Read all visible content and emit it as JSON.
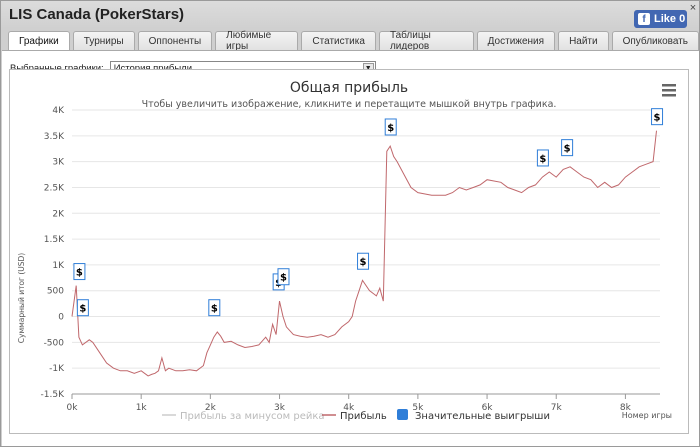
{
  "window": {
    "title": "LIS Canada (PokerStars)",
    "like_label": "Like 0",
    "close_glyph": "×"
  },
  "tabs": [
    {
      "label": "Графики",
      "active": true
    },
    {
      "label": "Турниры"
    },
    {
      "label": "Оппоненты"
    },
    {
      "label": "Любимые игры"
    },
    {
      "label": "Статистика"
    },
    {
      "label": "Таблицы лидеров"
    },
    {
      "label": "Достижения"
    },
    {
      "label": "Найти"
    },
    {
      "label": "Опубликовать"
    }
  ],
  "selector": {
    "label": "Выбранные графики:",
    "value": "История прибыли"
  },
  "colors": {
    "profit_line": "#c0686c",
    "rake_line": "#cccccc",
    "marker_border": "#2f7ed8",
    "tab_bg": "#e6e6e6"
  },
  "chart_data": {
    "type": "line",
    "title": "Общая прибыль",
    "subtitle": "Чтобы увеличить изображение, кликните и перетащите мышкой внутрь графика.",
    "ylabel": "Суммарный итог (USD)",
    "xlabel": "Номер игры",
    "ylim": [
      -1500,
      4000
    ],
    "xlim": [
      0,
      8500
    ],
    "x_ticks": [
      "0k",
      "1k",
      "2k",
      "3k",
      "4k",
      "5k",
      "6k",
      "7k",
      "8k"
    ],
    "y_ticks": [
      "4K",
      "3.5K",
      "3K",
      "2.5K",
      "2K",
      "1.5K",
      "1K",
      "500",
      "0",
      "-500",
      "-1K",
      "-1.5K"
    ],
    "legend": [
      "Прибыль за минусом рейка",
      "Прибыль",
      "Значительные выигрыши"
    ],
    "legend_position": "bottom",
    "series": [
      {
        "name": "Прибыль",
        "points": [
          [
            0,
            0
          ],
          [
            60,
            600
          ],
          [
            100,
            -400
          ],
          [
            150,
            -550
          ],
          [
            250,
            -450
          ],
          [
            300,
            -500
          ],
          [
            400,
            -700
          ],
          [
            500,
            -900
          ],
          [
            600,
            -1000
          ],
          [
            700,
            -1050
          ],
          [
            800,
            -1050
          ],
          [
            900,
            -1100
          ],
          [
            1000,
            -1050
          ],
          [
            1100,
            -1150
          ],
          [
            1150,
            -1120
          ],
          [
            1200,
            -1100
          ],
          [
            1250,
            -1050
          ],
          [
            1300,
            -800
          ],
          [
            1350,
            -1050
          ],
          [
            1400,
            -1000
          ],
          [
            1500,
            -1050
          ],
          [
            1600,
            -1050
          ],
          [
            1700,
            -1030
          ],
          [
            1800,
            -1050
          ],
          [
            1900,
            -950
          ],
          [
            1950,
            -700
          ],
          [
            2000,
            -550
          ],
          [
            2050,
            -400
          ],
          [
            2100,
            -300
          ],
          [
            2150,
            -380
          ],
          [
            2200,
            -500
          ],
          [
            2300,
            -480
          ],
          [
            2400,
            -550
          ],
          [
            2500,
            -600
          ],
          [
            2600,
            -580
          ],
          [
            2700,
            -550
          ],
          [
            2800,
            -400
          ],
          [
            2850,
            -500
          ],
          [
            2900,
            -150
          ],
          [
            2950,
            -350
          ],
          [
            3000,
            300
          ],
          [
            3050,
            0
          ],
          [
            3100,
            -200
          ],
          [
            3200,
            -350
          ],
          [
            3300,
            -380
          ],
          [
            3400,
            -400
          ],
          [
            3500,
            -380
          ],
          [
            3600,
            -350
          ],
          [
            3700,
            -400
          ],
          [
            3800,
            -350
          ],
          [
            3900,
            -200
          ],
          [
            4000,
            -100
          ],
          [
            4050,
            0
          ],
          [
            4100,
            300
          ],
          [
            4150,
            500
          ],
          [
            4200,
            700
          ],
          [
            4300,
            500
          ],
          [
            4400,
            400
          ],
          [
            4450,
            550
          ],
          [
            4500,
            300
          ],
          [
            4550,
            3200
          ],
          [
            4600,
            3300
          ],
          [
            4650,
            3100
          ],
          [
            4700,
            3000
          ],
          [
            4800,
            2750
          ],
          [
            4900,
            2500
          ],
          [
            5000,
            2400
          ],
          [
            5200,
            2350
          ],
          [
            5400,
            2350
          ],
          [
            5500,
            2400
          ],
          [
            5600,
            2500
          ],
          [
            5700,
            2450
          ],
          [
            5800,
            2500
          ],
          [
            5900,
            2550
          ],
          [
            6000,
            2650
          ],
          [
            6200,
            2600
          ],
          [
            6300,
            2500
          ],
          [
            6400,
            2450
          ],
          [
            6500,
            2400
          ],
          [
            6600,
            2500
          ],
          [
            6700,
            2550
          ],
          [
            6800,
            2700
          ],
          [
            6900,
            2800
          ],
          [
            7000,
            2700
          ],
          [
            7100,
            2850
          ],
          [
            7200,
            2900
          ],
          [
            7300,
            2800
          ],
          [
            7400,
            2700
          ],
          [
            7500,
            2650
          ],
          [
            7600,
            2500
          ],
          [
            7700,
            2600
          ],
          [
            7800,
            2500
          ],
          [
            7900,
            2550
          ],
          [
            8000,
            2700
          ],
          [
            8100,
            2800
          ],
          [
            8200,
            2900
          ],
          [
            8300,
            2950
          ],
          [
            8400,
            3000
          ],
          [
            8450,
            3600
          ]
        ]
      },
      {
        "name": "Прибыль за минусом рейка",
        "points": []
      }
    ],
    "markers": [
      {
        "x": 100,
        "y": 600,
        "label": "$"
      },
      {
        "x": 150,
        "y": -100,
        "label": "$"
      },
      {
        "x": 2050,
        "y": -100,
        "label": "$"
      },
      {
        "x": 2980,
        "y": 400,
        "label": "$"
      },
      {
        "x": 3050,
        "y": 500,
        "label": "$"
      },
      {
        "x": 4200,
        "y": 800,
        "label": "$"
      },
      {
        "x": 4600,
        "y": 3400,
        "label": "$"
      },
      {
        "x": 6800,
        "y": 2800,
        "label": "$"
      },
      {
        "x": 7150,
        "y": 3000,
        "label": "$"
      },
      {
        "x": 8450,
        "y": 3600,
        "label": "$"
      }
    ]
  }
}
